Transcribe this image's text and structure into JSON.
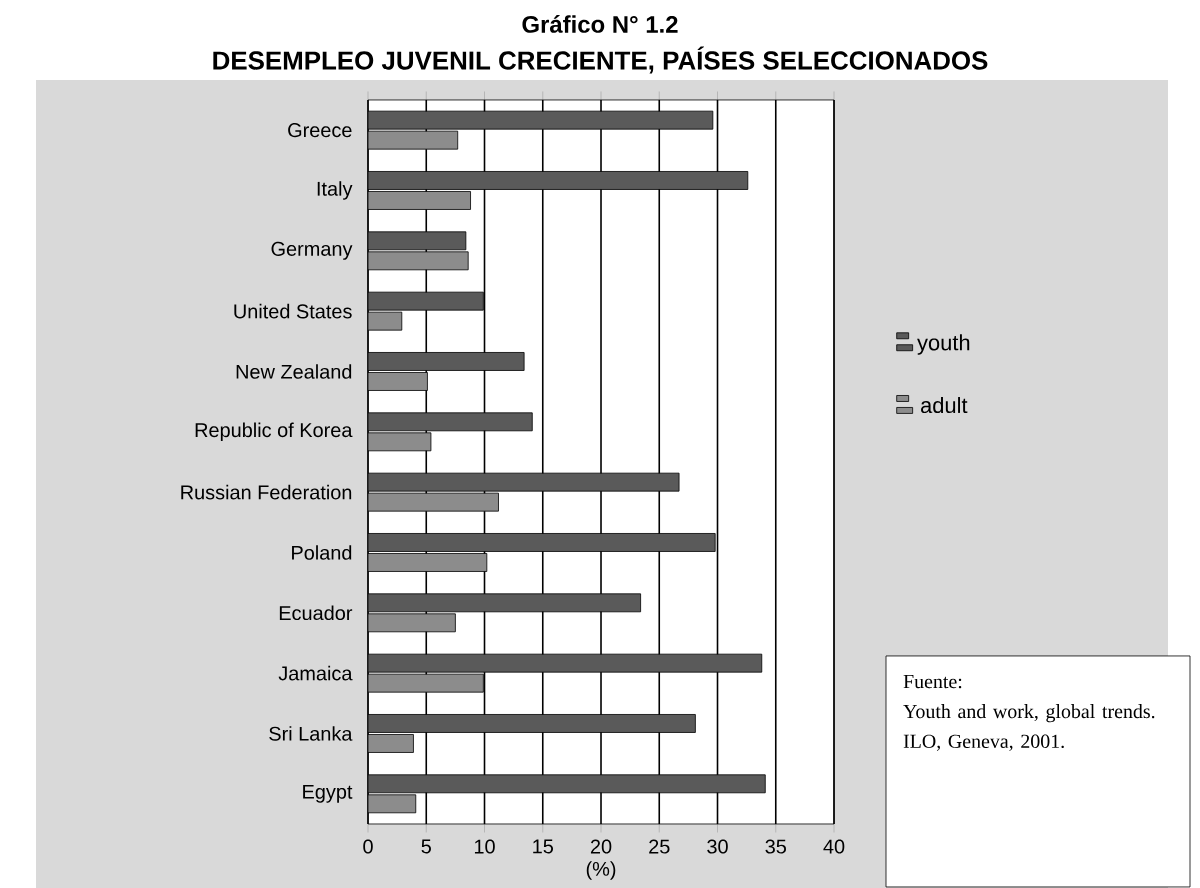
{
  "chart_data": {
    "type": "bar",
    "orientation": "horizontal",
    "title": "Gráfico N° 1.2",
    "subtitle": "DESEMPLEO JUVENIL CRECIENTE, PAÍSES SELECCIONADOS",
    "xlabel": "(%)",
    "categories": [
      "Greece",
      "Italy",
      "Germany",
      "United States",
      "New Zealand",
      "Republic of Korea",
      "Russian Federation",
      "Poland",
      "Ecuador",
      "Jamaica",
      "Sri Lanka",
      "Egypt"
    ],
    "series": [
      {
        "name": "youth",
        "color": "#5a5a5a",
        "values": [
          29.6,
          32.6,
          8.4,
          9.9,
          13.4,
          14.1,
          26.7,
          29.8,
          23.4,
          33.8,
          28.1,
          34.1
        ]
      },
      {
        "name": "adult",
        "color": "#8c8c8c",
        "values": [
          7.7,
          8.8,
          8.6,
          2.9,
          5.1,
          5.4,
          11.2,
          10.2,
          7.5,
          9.9,
          3.9,
          4.1
        ]
      }
    ],
    "xlim": [
      0,
      40
    ],
    "xticks": [
      0,
      5,
      10,
      15,
      20,
      25,
      30,
      35,
      40
    ],
    "grid": "x",
    "legend": "right",
    "annotations": [
      "Fuente:",
      "Youth and work, global trends. ILO, Geneva, 2001."
    ]
  }
}
